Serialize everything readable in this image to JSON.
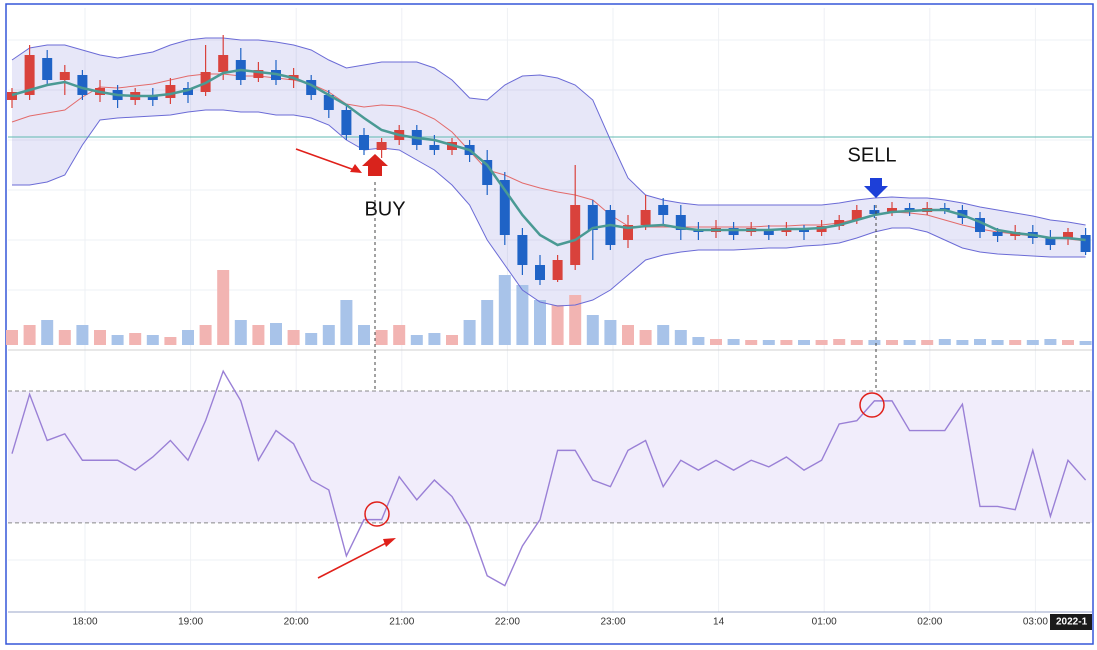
{
  "chart_data": [
    {
      "type": "candlestick",
      "open": [
        245,
        250,
        287,
        265,
        270,
        250,
        255,
        245,
        250,
        247,
        257,
        253,
        273,
        285,
        267,
        275,
        265,
        265,
        250,
        235,
        210,
        195,
        205,
        215,
        200,
        195,
        200,
        185,
        165,
        110,
        80,
        65,
        80,
        140,
        135,
        105,
        120,
        140,
        130,
        115,
        113,
        117,
        113,
        115,
        113,
        115,
        113,
        119,
        125,
        135,
        133,
        137,
        133,
        137,
        135,
        127,
        113,
        109,
        113,
        107,
        107,
        110
      ],
      "close": [
        253,
        290,
        265,
        273,
        250,
        257,
        245,
        253,
        245,
        260,
        250,
        273,
        290,
        265,
        275,
        265,
        270,
        250,
        235,
        210,
        195,
        203,
        215,
        200,
        195,
        203,
        190,
        160,
        110,
        80,
        65,
        85,
        140,
        115,
        100,
        120,
        135,
        130,
        115,
        113,
        117,
        110,
        117,
        110,
        117,
        113,
        119,
        125,
        135,
        131,
        137,
        133,
        137,
        135,
        127,
        113,
        109,
        113,
        107,
        100,
        113,
        93
      ],
      "high": [
        257,
        300,
        295,
        280,
        275,
        265,
        260,
        257,
        257,
        267,
        263,
        300,
        310,
        297,
        283,
        285,
        277,
        270,
        255,
        240,
        217,
        207,
        220,
        220,
        210,
        207,
        205,
        195,
        173,
        117,
        90,
        90,
        180,
        145,
        140,
        130,
        150,
        147,
        140,
        123,
        125,
        123,
        123,
        120,
        123,
        120,
        125,
        130,
        140,
        140,
        143,
        142,
        143,
        142,
        140,
        133,
        117,
        120,
        120,
        115,
        117,
        117
      ],
      "low": [
        237,
        245,
        260,
        250,
        245,
        243,
        237,
        240,
        239,
        241,
        242,
        249,
        265,
        260,
        263,
        260,
        257,
        245,
        227,
        205,
        190,
        187,
        200,
        195,
        190,
        190,
        183,
        150,
        100,
        70,
        60,
        63,
        75,
        85,
        95,
        97,
        115,
        120,
        105,
        105,
        107,
        105,
        109,
        105,
        109,
        105,
        109,
        115,
        121,
        127,
        129,
        129,
        130,
        131,
        121,
        107,
        103,
        105,
        101,
        95,
        100,
        90
      ],
      "volume": [
        15,
        20,
        25,
        15,
        20,
        15,
        10,
        12,
        10,
        8,
        15,
        20,
        75,
        25,
        20,
        22,
        15,
        12,
        20,
        45,
        20,
        15,
        20,
        10,
        12,
        10,
        25,
        45,
        70,
        60,
        45,
        40,
        50,
        30,
        25,
        20,
        15,
        20,
        15,
        8,
        6,
        6,
        5,
        5,
        5,
        5,
        5,
        6,
        5,
        5,
        5,
        5,
        5,
        6,
        5,
        6,
        5,
        5,
        5,
        6,
        5,
        4
      ],
      "bb_upper": [
        285,
        297,
        300,
        300,
        295,
        290,
        287,
        290,
        293,
        300,
        305,
        307,
        307,
        305,
        305,
        303,
        300,
        295,
        285,
        277,
        280,
        283,
        283,
        283,
        277,
        265,
        247,
        245,
        260,
        269,
        270,
        267,
        260,
        245,
        205,
        167,
        150,
        145,
        142,
        140,
        140,
        140,
        140,
        140,
        140,
        140,
        140,
        142,
        145,
        147,
        148,
        147,
        147,
        145,
        142,
        138,
        135,
        132,
        129,
        125,
        123,
        120
      ],
      "bb_lower": [
        160,
        160,
        163,
        170,
        200,
        225,
        227,
        228,
        229,
        230,
        233,
        235,
        235,
        233,
        233,
        230,
        230,
        227,
        220,
        205,
        195,
        197,
        195,
        185,
        175,
        160,
        140,
        105,
        80,
        55,
        43,
        39,
        40,
        45,
        55,
        70,
        85,
        90,
        93,
        95,
        95,
        95,
        96,
        97,
        97,
        99,
        100,
        102,
        107,
        113,
        117,
        117,
        113,
        105,
        97,
        93,
        91,
        90,
        89,
        88,
        88,
        88
      ],
      "bb_mid": [
        223,
        229,
        232,
        235,
        248,
        258,
        257,
        259,
        261,
        265,
        269,
        271,
        271,
        269,
        269,
        267,
        265,
        261,
        253,
        241,
        238,
        240,
        239,
        234,
        226,
        213,
        194,
        175,
        170,
        162,
        157,
        153,
        150,
        145,
        130,
        119,
        118,
        118,
        118,
        118,
        118,
        118,
        118,
        119,
        119,
        120,
        120,
        122,
        126,
        130,
        133,
        132,
        130,
        125,
        120,
        116,
        113,
        111,
        109,
        107,
        106,
        104
      ],
      "ma": [
        250,
        255,
        260,
        263,
        257,
        253,
        250,
        249,
        249,
        251,
        255,
        262,
        272,
        275,
        273,
        271,
        267,
        260,
        250,
        240,
        227,
        215,
        210,
        207,
        205,
        200,
        195,
        180,
        155,
        130,
        110,
        100,
        105,
        117,
        120,
        117,
        119,
        120,
        117,
        115,
        115,
        115,
        115,
        115,
        116,
        116,
        117,
        120,
        125,
        130,
        133,
        134,
        135,
        135,
        130,
        123,
        115,
        112,
        110,
        107,
        107,
        105
      ],
      "price_line": 208,
      "ylim": [
        0,
        340
      ],
      "up_color": "#d9423c",
      "down_color": "#1f63c6",
      "up_volume_color": "#f2b4b2",
      "down_volume_color": "#a8c3e9",
      "band_color": "#6b6bd6",
      "ma_color": "#4a9a94",
      "mid_color": "#e36b6b",
      "price_line_color": "#5fb8b0",
      "annotations": {
        "buy": "BUY",
        "sell": "SELL"
      }
    },
    {
      "type": "line",
      "values": [
        51,
        69,
        55,
        57,
        49,
        49,
        49,
        46,
        50,
        55,
        49,
        61,
        76,
        67,
        49,
        58,
        54,
        43,
        40,
        20,
        31,
        31,
        44,
        37,
        43,
        38,
        29,
        14,
        11,
        23,
        31,
        52,
        52,
        43,
        41,
        52,
        55,
        41,
        49,
        46,
        49,
        46,
        49,
        47,
        50,
        46,
        49,
        60,
        61,
        67,
        67,
        58,
        58,
        58,
        66,
        35,
        35,
        34,
        52,
        32,
        49,
        43
      ],
      "ylim": [
        3,
        80
      ],
      "levels": [
        30,
        70
      ],
      "color": "#9a80d6",
      "band_fill": "#f1edfb",
      "xticks": [
        "18:00",
        "19:00",
        "20:00",
        "21:00",
        "22:00",
        "23:00",
        "14",
        "01:00",
        "02:00",
        "03:00"
      ],
      "date_label": "2022-1"
    }
  ]
}
